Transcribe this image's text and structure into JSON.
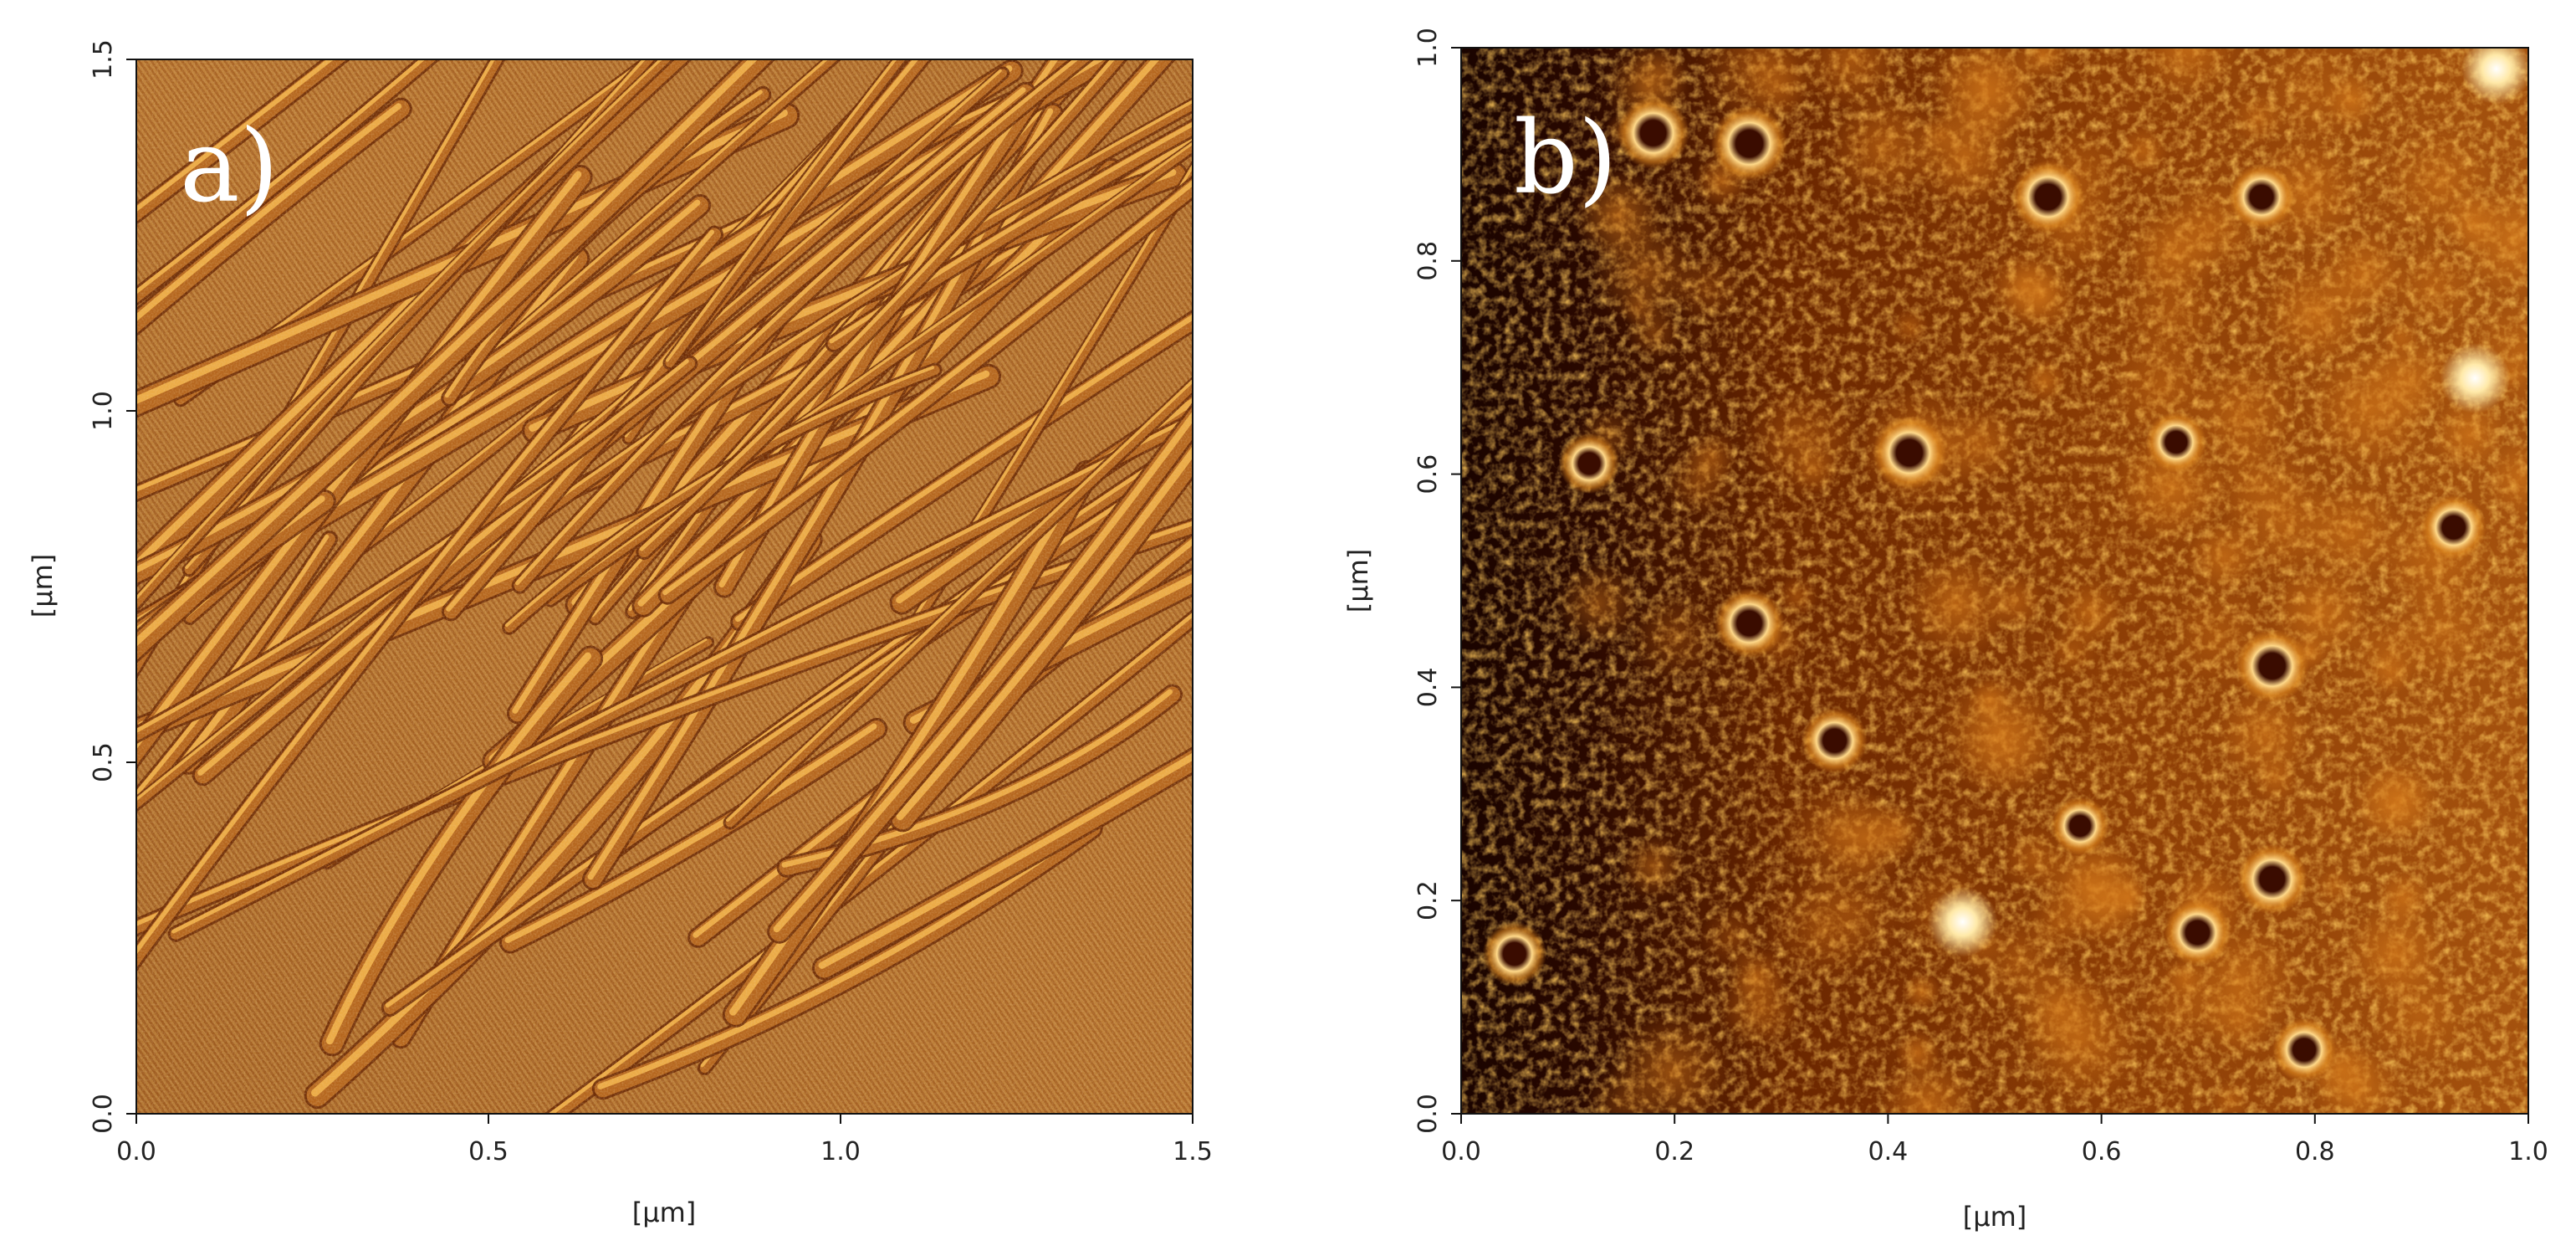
{
  "panels": [
    {
      "id": "a",
      "label": "a)",
      "x_axis_label": "[µm]",
      "y_axis_label": "[µm]",
      "x_ticks": [
        "0.0",
        "0.5",
        "1.0",
        "1.5"
      ],
      "y_ticks": [
        "0.0",
        "0.5",
        "1.0",
        "1.5"
      ],
      "x_range": [
        0,
        1.5
      ],
      "y_range": [
        0,
        1.5
      ],
      "palette": {
        "dark": "#6b2a05",
        "mid": "#b5661e",
        "light": "#f2b24a",
        "highlight": "#ffe19a"
      },
      "texture": "diagonal-striations"
    },
    {
      "id": "b",
      "label": "b)",
      "x_axis_label": "[µm]",
      "y_axis_label": "[µm]",
      "x_ticks": [
        "0.0",
        "0.2",
        "0.4",
        "0.6",
        "0.8",
        "1.0"
      ],
      "y_ticks": [
        "0.0",
        "0.2",
        "0.4",
        "0.6",
        "0.8",
        "1.0"
      ],
      "x_range": [
        0,
        1.0
      ],
      "y_range": [
        0,
        1.0
      ],
      "palette": {
        "dark": "#1e0500",
        "mid": "#8a3a00",
        "light": "#e39a2b",
        "highlight": "#fff6cf"
      },
      "texture": "granular-with-ring-features"
    }
  ]
}
